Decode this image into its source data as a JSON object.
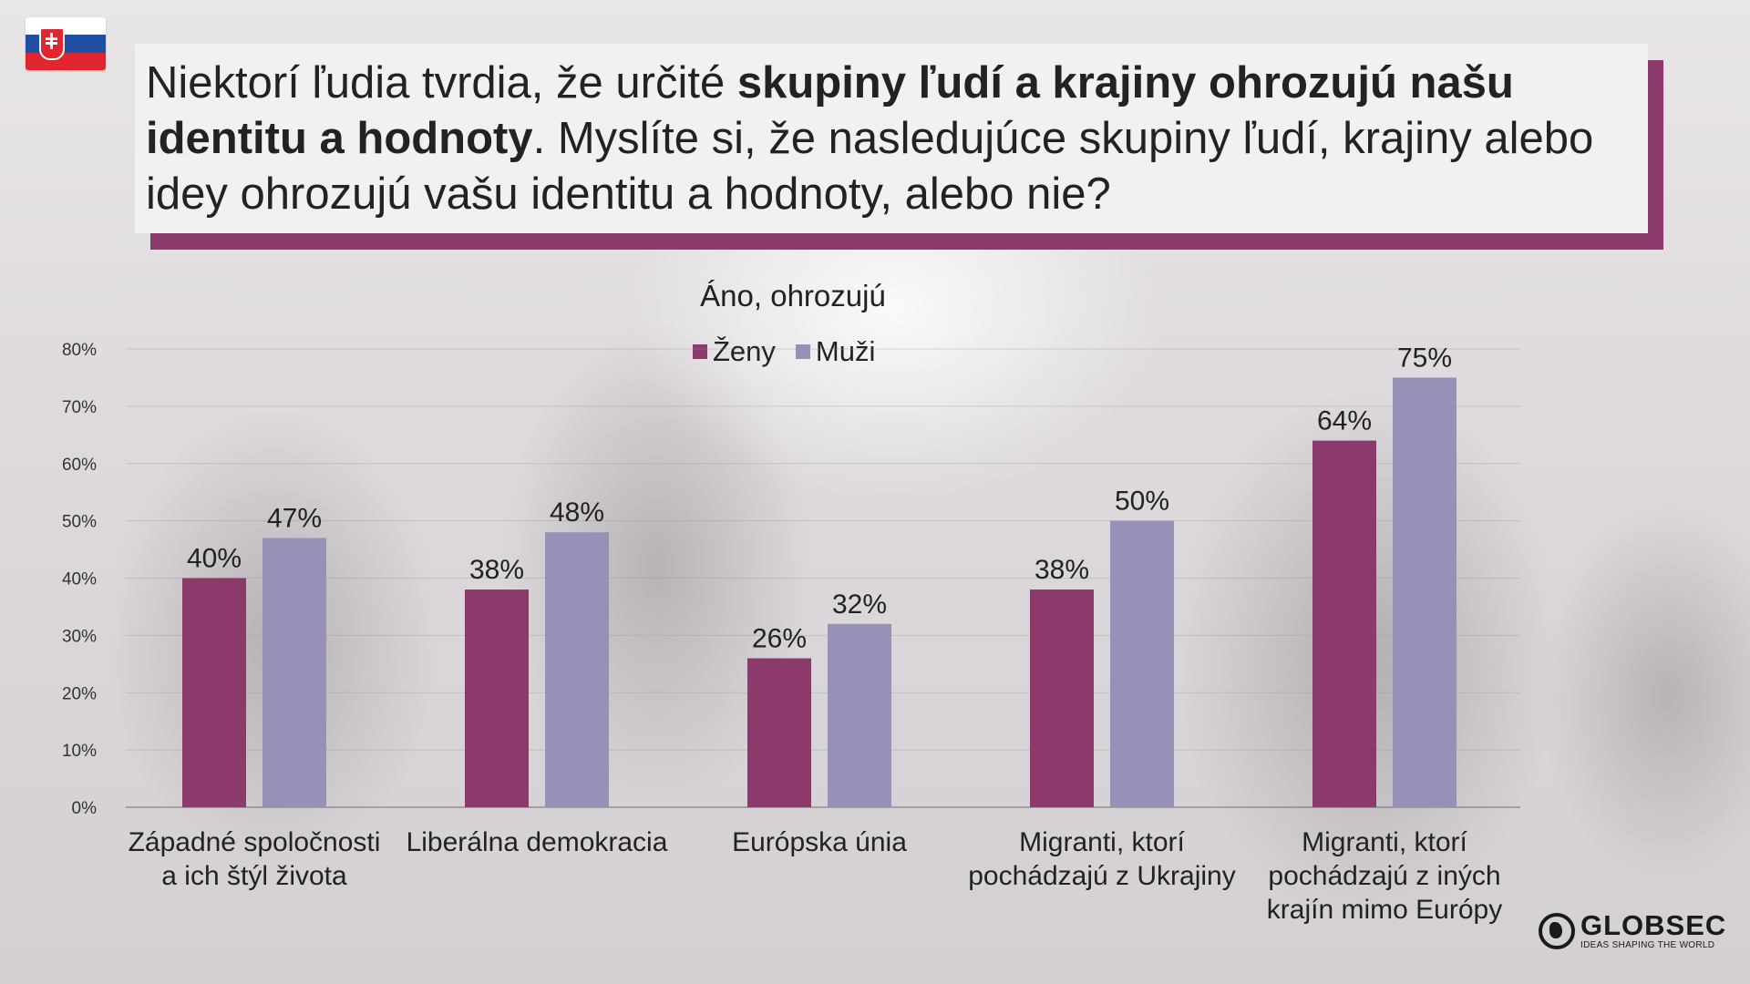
{
  "title": {
    "part1": "Niektorí ľudia tvrdia, že určité ",
    "bold1": "skupiny ľudí a krajiny ohrozujú našu identitu a hodnoty",
    "part2": ". Myslíte si, že nasledujúce skupiny ľudí, krajiny alebo idey ohrozujú vašu identitu a hodnoty, alebo nie?"
  },
  "flag": "slovakia-flag",
  "logo": {
    "name": "GLOBSEC",
    "tagline": "IDEAS SHAPING THE WORLD"
  },
  "colors": {
    "zeny": "#8b3a6b",
    "muzi": "#9791b8",
    "accent": "#8b3a6b"
  },
  "chart_data": {
    "type": "bar",
    "title": "Áno, ohrozujú",
    "categories": [
      "Západné spoločnosti a ich štýl života",
      "Liberálna demokracia",
      "Európska únia",
      "Migranti, ktorí pochádzajú z Ukrajiny",
      "Migranti, ktorí pochádzajú z iných krajín mimo Európy"
    ],
    "series": [
      {
        "name": "Ženy",
        "values": [
          40,
          38,
          26,
          38,
          64
        ]
      },
      {
        "name": "Muži",
        "values": [
          47,
          48,
          32,
          50,
          75
        ]
      }
    ],
    "yticks": [
      "0%",
      "10%",
      "20%",
      "30%",
      "40%",
      "50%",
      "60%",
      "70%",
      "80%"
    ],
    "ylim": [
      0,
      80
    ],
    "legend": "top-center",
    "grid": true
  }
}
